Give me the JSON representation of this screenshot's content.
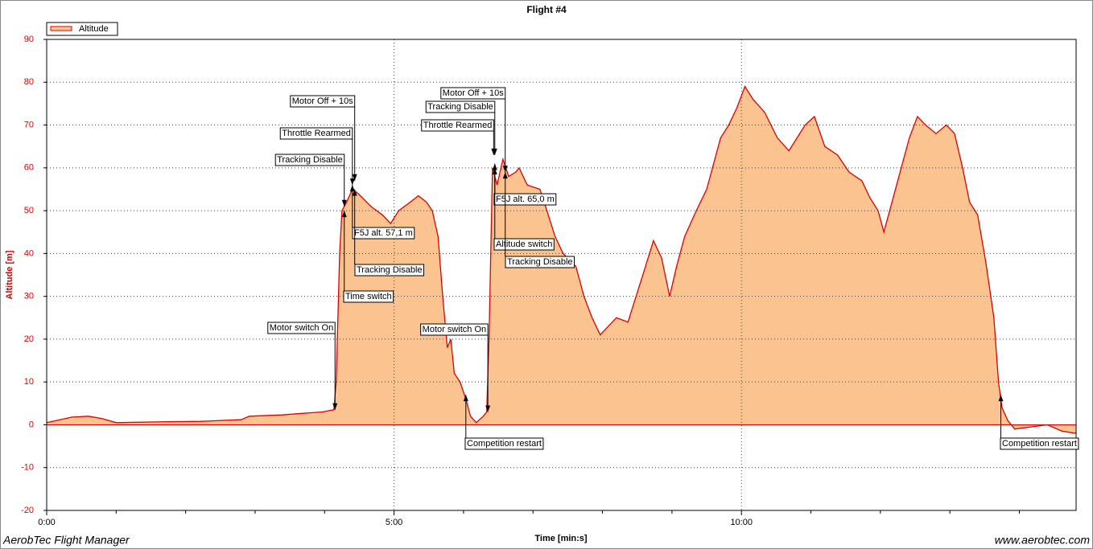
{
  "chart_data": {
    "type": "area",
    "title": "Flight #4",
    "xlabel": "Time [min:s]",
    "ylabel": "Altitude [m]",
    "footer_left": "AerobTec Flight Manager",
    "footer_right": "www.aerobtec.com",
    "xlim": [
      0,
      889
    ],
    "ylim": [
      -20,
      90
    ],
    "xticks": [
      {
        "value": 0,
        "label": "0:00"
      },
      {
        "value": 300,
        "label": "5:00"
      },
      {
        "value": 600,
        "label": "10:00"
      }
    ],
    "xminorticks": [
      60,
      120,
      180,
      240,
      360,
      420,
      480,
      540,
      660,
      720,
      780,
      840
    ],
    "yticks": [
      -20,
      -10,
      0,
      10,
      20,
      30,
      40,
      50,
      60,
      70,
      80,
      90
    ],
    "grid": true,
    "legend": "top-left",
    "series": [
      {
        "name": "Altitude",
        "color": "#e00000",
        "fill": "#fbc38f",
        "x": [
          0,
          22,
          36,
          47,
          60,
          99,
          133,
          168,
          175,
          203,
          238,
          248,
          250,
          253,
          255,
          259,
          264,
          269,
          280,
          290,
          297,
          304,
          314,
          321,
          328,
          333,
          338,
          342,
          346,
          349,
          352,
          357,
          362,
          366,
          371,
          377,
          380,
          382,
          385,
          389,
          394,
          399,
          405,
          408,
          415,
          426,
          432,
          439,
          446,
          457,
          464,
          471,
          478,
          485,
          492,
          502,
          509,
          516,
          524,
          531,
          538,
          544,
          551,
          561,
          570,
          575,
          582,
          589,
          596,
          603,
          610,
          620,
          631,
          641,
          648,
          655,
          663,
          672,
          683,
          693,
          704,
          711,
          718,
          723,
          730,
          738,
          745,
          752,
          759,
          768,
          777,
          784,
          791,
          797,
          804,
          811,
          818,
          822,
          825,
          830,
          836,
          850,
          864,
          877,
          889
        ],
        "values": [
          0.5,
          1.8,
          2,
          1.5,
          0.5,
          0.7,
          0.8,
          1.2,
          2,
          2.3,
          3,
          3.5,
          10,
          40,
          50,
          52,
          55,
          54,
          51,
          49,
          47,
          50,
          52,
          53.5,
          52,
          50,
          44,
          30,
          18,
          20,
          12,
          10,
          6,
          2,
          0.5,
          2,
          3,
          20,
          60,
          56,
          62,
          58,
          59,
          60,
          56,
          55,
          50,
          44,
          40,
          37,
          30,
          25,
          21,
          23,
          25,
          24,
          30,
          36,
          43,
          39,
          30,
          37,
          44,
          50,
          55,
          60,
          67,
          70,
          74,
          79,
          76,
          73,
          67,
          64,
          67,
          70,
          72,
          65,
          63,
          59,
          57,
          53,
          50,
          45,
          52,
          60,
          67,
          72,
          70,
          68,
          70,
          68,
          60,
          52,
          49,
          38,
          25,
          10,
          4,
          1,
          -1,
          -0.5,
          0,
          -1.5,
          -2
        ]
      }
    ],
    "annotations": [
      {
        "text": "Motor switch On",
        "x": 249,
        "y": 3.5
      },
      {
        "text": "Time switch",
        "x": 257,
        "y": 50
      },
      {
        "text": "Tracking Disable",
        "x": 257,
        "y": 51
      },
      {
        "text": "Throttle Rearmed",
        "x": 264,
        "y": 56
      },
      {
        "text": "Motor Off + 10s",
        "x": 266,
        "y": 57
      },
      {
        "text": "F5J alt. 57,1 m",
        "x": 264,
        "y": 56
      },
      {
        "text": "Tracking Disable",
        "x": 266,
        "y": 55
      },
      {
        "text": "Competition restart",
        "x": 362,
        "y": 7
      },
      {
        "text": "Motor switch On",
        "x": 381,
        "y": 3
      },
      {
        "text": "Throttle Rearmed",
        "x": 386,
        "y": 63
      },
      {
        "text": "Tracking Disable",
        "x": 387,
        "y": 63
      },
      {
        "text": "Motor Off + 10s",
        "x": 396,
        "y": 59
      },
      {
        "text": "F5J alt. 65,0 m",
        "x": 387,
        "y": 61
      },
      {
        "text": "Altitude switch",
        "x": 387,
        "y": 60
      },
      {
        "text": "Tracking Disable",
        "x": 396,
        "y": 59
      },
      {
        "text": "Competition restart",
        "x": 824,
        "y": 7
      }
    ]
  }
}
